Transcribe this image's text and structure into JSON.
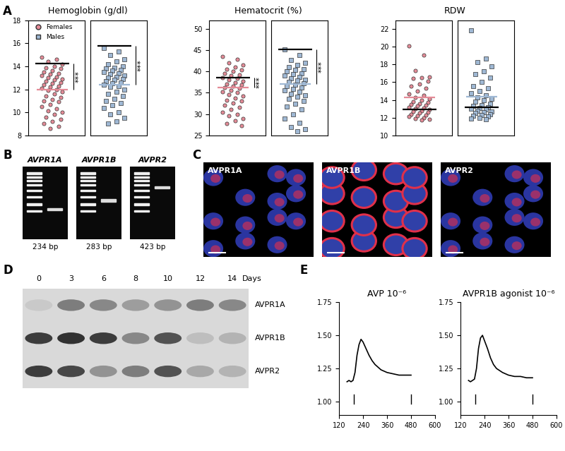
{
  "panel_labels": [
    "A",
    "B",
    "C",
    "D",
    "E"
  ],
  "chart_data": [
    {
      "type": "strip",
      "title": "Hemoglobin (g/dl)",
      "ylim": [
        8,
        18
      ],
      "yticks": [
        8,
        10,
        12,
        14,
        16,
        18
      ],
      "tick_labels": "y",
      "legend": "upper left",
      "series": [
        {
          "name": "Females",
          "color": "#e48b97",
          "marker": "circle",
          "mean": 12.0,
          "reference": 14.25,
          "significance": "***",
          "values": [
            14.8,
            14.6,
            14.4,
            14.2,
            14.0,
            13.9,
            13.8,
            13.6,
            13.5,
            13.4,
            13.3,
            13.2,
            13.1,
            13.0,
            12.9,
            12.8,
            12.7,
            12.6,
            12.5,
            12.4,
            12.3,
            12.2,
            12.1,
            12.0,
            11.9,
            11.8,
            11.6,
            11.4,
            11.3,
            11.1,
            11.0,
            10.9,
            10.7,
            10.5,
            10.3,
            10.1,
            10.0,
            9.8,
            9.6,
            9.4,
            9.2,
            9.0,
            8.8,
            8.6
          ]
        },
        {
          "name": "Males",
          "color": "#9fb8d4",
          "marker": "square",
          "mean": 12.4,
          "reference": 15.75,
          "significance": "***",
          "values": [
            15.6,
            15.3,
            15.0,
            14.6,
            14.4,
            14.2,
            14.0,
            13.9,
            13.8,
            13.7,
            13.6,
            13.5,
            13.4,
            13.3,
            13.2,
            13.1,
            13.0,
            12.9,
            12.8,
            12.7,
            12.6,
            12.5,
            12.4,
            12.3,
            12.2,
            12.0,
            11.8,
            11.6,
            11.4,
            11.2,
            11.0,
            10.8,
            10.6,
            10.4,
            10.0,
            9.8,
            9.5,
            9.2,
            9.0
          ]
        }
      ]
    },
    {
      "type": "strip",
      "title": "Hematocrit (%)",
      "ylim": [
        25,
        52
      ],
      "yticks": [
        25,
        30,
        35,
        40,
        45,
        50
      ],
      "tick_labels": "y",
      "series": [
        {
          "name": "Females",
          "color": "#e48b97",
          "marker": "circle",
          "mean": 36.3,
          "reference": 38.5,
          "significance": "***",
          "values": [
            43.5,
            42.8,
            42.0,
            41.5,
            41.0,
            40.5,
            40.3,
            40.0,
            39.6,
            39.2,
            39.0,
            38.6,
            38.3,
            38.0,
            37.7,
            37.4,
            37.1,
            36.8,
            36.5,
            36.2,
            36.0,
            35.6,
            35.3,
            35.0,
            34.6,
            34.2,
            33.8,
            33.3,
            33.0,
            32.5,
            32.0,
            31.5,
            31.0,
            30.5,
            30.0,
            29.6,
            29.0,
            28.5,
            27.8,
            27.3
          ]
        },
        {
          "name": "Males",
          "color": "#9fb8d4",
          "marker": "square",
          "mean": 37.0,
          "reference": 45.2,
          "significance": "***",
          "values": [
            45.2,
            43.8,
            42.6,
            42.0,
            41.5,
            41.0,
            40.6,
            40.3,
            40.0,
            39.6,
            39.3,
            39.0,
            38.7,
            38.4,
            38.1,
            37.8,
            37.5,
            37.2,
            36.9,
            36.5,
            36.2,
            35.9,
            35.6,
            35.2,
            34.8,
            34.4,
            34.0,
            33.5,
            33.0,
            32.4,
            31.8,
            31.0,
            30.0,
            29.0,
            28.0,
            27.0,
            26.5,
            26.0
          ]
        }
      ]
    },
    {
      "type": "strip",
      "title": "RDW",
      "ylim": [
        10,
        23
      ],
      "yticks": [
        10,
        12,
        14,
        16,
        18,
        20,
        22
      ],
      "tick_labels": "y",
      "series": [
        {
          "name": "Females",
          "color": "#e48b97",
          "marker": "circle",
          "mean": 14.3,
          "reference": 12.9,
          "values": [
            20.1,
            19.1,
            17.3,
            16.6,
            16.5,
            16.4,
            16.1,
            15.8,
            15.6,
            15.3,
            15.0,
            14.7,
            14.5,
            14.3,
            14.1,
            14.0,
            13.8,
            13.7,
            13.6,
            13.5,
            13.4,
            13.3,
            13.2,
            13.1,
            13.0,
            12.9,
            12.8,
            12.7,
            12.6,
            12.5,
            12.4,
            12.3,
            12.2,
            12.1,
            12.0,
            11.9,
            11.8,
            11.7
          ]
        },
        {
          "name": "Males",
          "color": "#9fb8d4",
          "marker": "square",
          "mean": 14.4,
          "reference": 13.2,
          "values": [
            21.9,
            18.7,
            18.3,
            17.8,
            17.2,
            16.9,
            16.5,
            16.0,
            15.6,
            15.3,
            15.0,
            14.8,
            14.5,
            14.3,
            14.1,
            14.0,
            13.8,
            13.6,
            13.4,
            13.3,
            13.2,
            13.1,
            13.0,
            12.9,
            12.8,
            12.7,
            12.6,
            12.5,
            12.4,
            12.3,
            12.2,
            12.1,
            12.0,
            11.9,
            11.8
          ]
        }
      ]
    },
    {
      "type": "line",
      "title": "AVP 10⁻⁶",
      "color": "#000000",
      "x": [
        160,
        170,
        180,
        190,
        200,
        210,
        220,
        230,
        240,
        255,
        270,
        285,
        300,
        330,
        360,
        390,
        420,
        450,
        480
      ],
      "values": [
        1.15,
        1.16,
        1.15,
        1.16,
        1.22,
        1.35,
        1.43,
        1.47,
        1.45,
        1.4,
        1.35,
        1.31,
        1.28,
        1.24,
        1.22,
        1.21,
        1.2,
        1.2,
        1.2
      ],
      "events": [
        195,
        480
      ],
      "xlim": [
        120,
        600
      ],
      "xticks": [
        120,
        240,
        360,
        480,
        600
      ],
      "ylim": [
        0.9,
        1.75
      ],
      "yticks": [
        {
          "value": 1.0,
          "label": "1.00"
        },
        {
          "value": 1.25,
          "label": "1.25"
        },
        {
          "value": 1.5,
          "label": "1.50"
        },
        {
          "value": 1.75,
          "label": "1.75"
        }
      ]
    },
    {
      "type": "line",
      "title": "AVPR1B agonist 10⁻⁶",
      "color": "#000000",
      "x": [
        160,
        170,
        180,
        190,
        200,
        210,
        220,
        230,
        240,
        255,
        270,
        285,
        300,
        330,
        360,
        390,
        420,
        450,
        480
      ],
      "values": [
        1.16,
        1.15,
        1.16,
        1.17,
        1.25,
        1.4,
        1.48,
        1.5,
        1.46,
        1.4,
        1.33,
        1.28,
        1.25,
        1.22,
        1.2,
        1.19,
        1.19,
        1.18,
        1.18
      ],
      "events": [
        195,
        480
      ],
      "xlim": [
        120,
        600
      ],
      "xticks": [
        120,
        240,
        360,
        480,
        600
      ],
      "ylim": [
        0.9,
        1.75
      ],
      "yticks": [
        {
          "value": 1.0,
          "label": "1.00"
        },
        {
          "value": 1.25,
          "label": "1.25"
        },
        {
          "value": 1.5,
          "label": "1.50"
        },
        {
          "value": 1.75,
          "label": "1.75"
        }
      ]
    }
  ],
  "gels": [
    {
      "gene": "AVPR1A",
      "size": "234 bp"
    },
    {
      "gene": "AVPR1B",
      "size": "283 bp"
    },
    {
      "gene": "AVPR2",
      "size": "423 bp"
    }
  ],
  "micrographs": [
    "AVPR1A",
    "AVPR1B",
    "AVPR2"
  ],
  "western_blot": {
    "days": [
      0,
      3,
      6,
      8,
      10,
      12,
      14
    ],
    "unit": "Days",
    "rows": [
      {
        "name": "AVPR1A",
        "intensity": [
          0.25,
          0.6,
          0.55,
          0.45,
          0.5,
          0.6,
          0.55
        ]
      },
      {
        "name": "AVPR1B",
        "intensity": [
          0.9,
          0.95,
          0.9,
          0.55,
          0.8,
          0.3,
          0.35
        ]
      },
      {
        "name": "AVPR2",
        "intensity": [
          0.9,
          0.85,
          0.5,
          0.6,
          0.8,
          0.4,
          0.35
        ]
      }
    ]
  }
}
